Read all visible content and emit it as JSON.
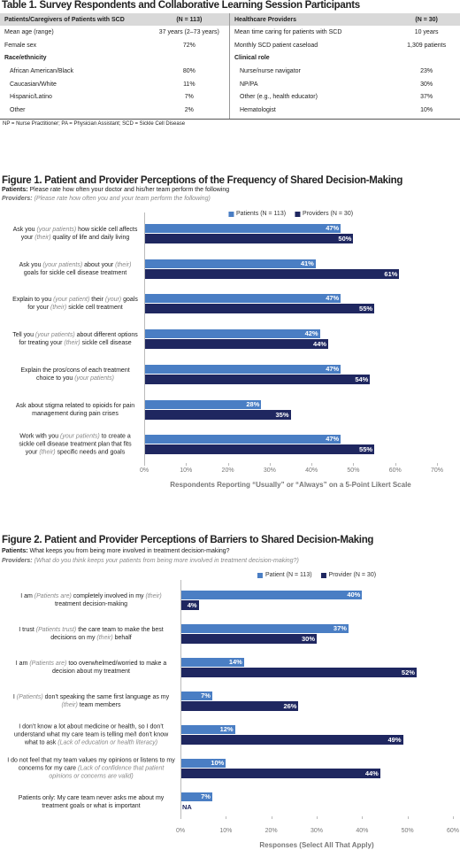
{
  "table": {
    "title": "Table 1. Survey Respondents and Collaborative Learning Session Participants",
    "left": {
      "header": [
        "Patients/Caregivers of Patients with SCD",
        "(N = 113)"
      ],
      "rows": [
        [
          "Mean age (range)",
          "37 years (2–73 years)"
        ],
        [
          "Female sex",
          "72%"
        ],
        [
          "Race/ethnicity"
        ],
        [
          "African American/Black",
          "80%"
        ],
        [
          "Caucasian/White",
          "11%"
        ],
        [
          "Hispanic/Latino",
          "7%"
        ],
        [
          "Other",
          "2%"
        ]
      ]
    },
    "right": {
      "header": [
        "Healthcare Providers",
        "(N = 30)"
      ],
      "rows": [
        [
          "Mean time caring for patients with SCD",
          "10 years"
        ],
        [
          "Monthly SCD patient caseload",
          "1,309 patients"
        ],
        [
          "Clinical role"
        ],
        [
          "Nurse/nurse navigator",
          "23%"
        ],
        [
          "NP/PA",
          "30%"
        ],
        [
          "Other (e.g., health educator)",
          "37%"
        ],
        [
          "Hematologist",
          "10%"
        ]
      ]
    },
    "footnote": "NP = Nurse Practitioner; PA = Physician Assistant; SCD = Sickle Cell Disease"
  },
  "chart_data": [
    {
      "type": "hbar",
      "title": "Figure 1. Patient and Provider Perceptions of the Frequency of Shared Decision-Making",
      "subtitles": [
        {
          "label": "Patients:",
          "text": "Please rate how often your doctor and his/her team perform the following"
        },
        {
          "label": "Providers:",
          "text": "(Please rate how often you and your team perform the following)"
        }
      ],
      "categories": [
        "Ask you (your patients) how sickle cell affects your (their) quality of life and daily living",
        "Ask you (your patients) about your (their) goals for sickle cell disease treatment",
        "Explain to you (your patient) their (your) goals for your (their) sickle cell treatment",
        "Tell you (your patients) about different options for treating your (their) sickle cell disease",
        "Explain the pros/cons of each treatment choice to you (your patients)",
        "Ask about stigma related to opioids for pain management during pain crises",
        "Work with you (your patients) to create a sickle cell disease treatment plan that fits your (their) specific needs and goals"
      ],
      "series": [
        {
          "name": "Patients (N = 113)",
          "color": "#4a7ec4",
          "values": [
            47,
            41,
            47,
            42,
            47,
            28,
            47
          ],
          "value_labels": [
            "47%",
            "41%",
            "47%",
            "42%",
            "47%",
            "28%",
            "47%"
          ]
        },
        {
          "name": "Providers (N = 30)",
          "color": "#1f2760",
          "values": [
            50,
            61,
            55,
            44,
            54,
            35,
            55
          ],
          "value_labels": [
            "50%",
            "61%",
            "55%",
            "44%",
            "54%",
            "35%",
            "55%"
          ]
        }
      ],
      "xlim": [
        0,
        70
      ],
      "xticks": [
        {
          "value": 0,
          "label": "0%"
        },
        {
          "value": 10,
          "label": "10%"
        },
        {
          "value": 20,
          "label": "20%"
        },
        {
          "value": 30,
          "label": "30%"
        },
        {
          "value": 40,
          "label": "40%"
        },
        {
          "value": 50,
          "label": "50%"
        },
        {
          "value": 60,
          "label": "60%"
        },
        {
          "value": 70,
          "label": "70%"
        }
      ],
      "x_label": "Respondents Reporting “Usually” or “Always” on a 5-Point Likert Scale"
    },
    {
      "type": "hbar",
      "title": "Figure 2. Patient and Provider Perceptions of Barriers to Shared Decision-Making",
      "subtitles": [
        {
          "label": "Patients:",
          "text": "What keeps you from being more involved in treatment decision-making?"
        },
        {
          "label": "Providers:",
          "text": "(What do you think keeps your patients from being more involved in treatment decision-making?)"
        }
      ],
      "categories": [
        "I am (Patients are) completely involved in my (their) treatment decision-making",
        "I trust (Patients trust) the care team to make the best decisions on my (their) behalf",
        "I am (Patients are) too overwhelmed/worried to make a decision about my treatment",
        "I (Patients) don’t speaking the same first language as my (their) team members",
        "I don’t know a lot about medicine or health, so I don’t understand what my care team is telling me/I don’t know what to ask (Lack of education or health literacy)",
        "I do not feel that my team values my opinions or listens to my concerns for my care (Lack of confidence that patient opinions or concerns are valid)",
        "Patients only: My care team never asks me about my treatment goals or what is important"
      ],
      "series": [
        {
          "name": "Patient (N = 113)",
          "color": "#4a7ec4",
          "values": [
            40,
            37,
            14,
            7,
            12,
            10,
            7
          ],
          "value_labels": [
            "40%",
            "37%",
            "14%",
            "7%",
            "12%",
            "10%",
            "7%"
          ]
        },
        {
          "name": "Provider (N = 30)",
          "color": "#1f2760",
          "values": [
            4,
            30,
            52,
            26,
            49,
            44,
            null
          ],
          "value_labels": [
            "4%",
            "30%",
            "52%",
            "26%",
            "49%",
            "44%",
            "NA"
          ]
        }
      ],
      "xlim": [
        0,
        60
      ],
      "xticks": [
        {
          "value": 0,
          "label": "0%"
        },
        {
          "value": 10,
          "label": "10%"
        },
        {
          "value": 20,
          "label": "20%"
        },
        {
          "value": 30,
          "label": "30%"
        },
        {
          "value": 40,
          "label": "40%"
        },
        {
          "value": 50,
          "label": "50%"
        },
        {
          "value": 60,
          "label": "60%"
        }
      ],
      "x_label": "Responses (Select All That Apply)"
    }
  ]
}
